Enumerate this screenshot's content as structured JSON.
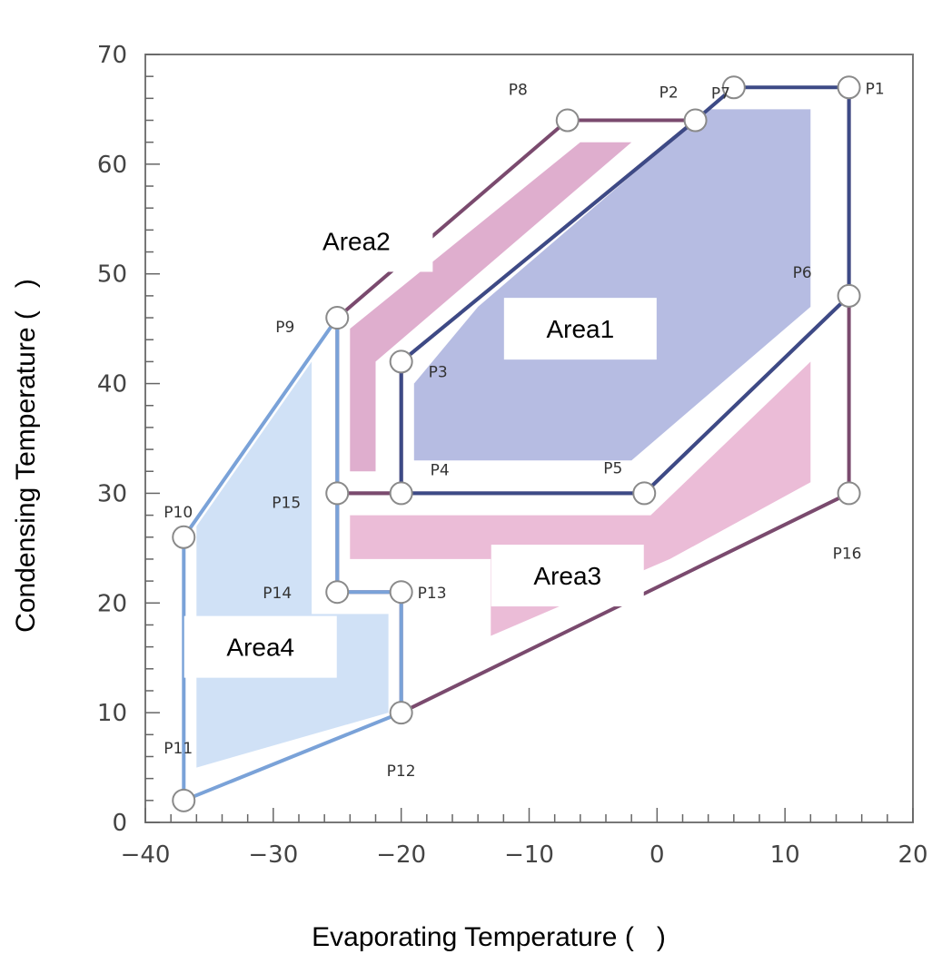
{
  "chart_data": {
    "type": "area",
    "title": "",
    "xlabel": "Evaporating Temperature (   )",
    "ylabel": "Condensing Temperature (   )",
    "xlim": [
      -40,
      20
    ],
    "ylim": [
      0,
      70
    ],
    "x_ticks": [
      -40,
      -30,
      -20,
      -10,
      0,
      10,
      20
    ],
    "y_ticks": [
      0,
      10,
      20,
      30,
      40,
      50,
      60,
      70
    ],
    "x_tick_labels": [
      "−40",
      "−30",
      "−20",
      "−10",
      "0",
      "10",
      "20"
    ],
    "y_tick_labels": [
      "0",
      "10",
      "20",
      "30",
      "40",
      "50",
      "60",
      "70"
    ],
    "grid": false,
    "points": [
      {
        "label": "P1",
        "x": 15,
        "y": 67
      },
      {
        "label": "P2",
        "x": 3,
        "y": 64
      },
      {
        "label": "P3",
        "x": -20,
        "y": 42
      },
      {
        "label": "P4",
        "x": -20,
        "y": 30
      },
      {
        "label": "P5",
        "x": -1,
        "y": 30
      },
      {
        "label": "P6",
        "x": 15,
        "y": 48
      },
      {
        "label": "P7",
        "x": 6,
        "y": 67
      },
      {
        "label": "P8",
        "x": -7,
        "y": 64
      },
      {
        "label": "P9",
        "x": -25,
        "y": 46
      },
      {
        "label": "P10",
        "x": -37,
        "y": 26
      },
      {
        "label": "P11",
        "x": -37,
        "y": 2
      },
      {
        "label": "P12",
        "x": -20,
        "y": 10
      },
      {
        "label": "P13",
        "x": -20,
        "y": 21
      },
      {
        "label": "P14",
        "x": -25,
        "y": 21
      },
      {
        "label": "P15",
        "x": -25,
        "y": 30
      },
      {
        "label": "P16",
        "x": 15,
        "y": 30
      }
    ],
    "areas": [
      {
        "name": "Area1",
        "fill": "#a9b0dd",
        "line": "#3d4a86",
        "boundary": [
          "P1",
          "P6",
          "P5",
          "P4",
          "P3",
          "P2",
          "P7"
        ],
        "fill_polygon": [
          [
            -19,
            40
          ],
          [
            -14,
            47
          ],
          [
            4,
            65
          ],
          [
            12,
            65
          ],
          [
            12,
            47
          ],
          [
            -2,
            33
          ],
          [
            -19,
            33
          ]
        ]
      },
      {
        "name": "Area2",
        "fill": "#d9a0c6",
        "line": "#7a4a6e",
        "boundary": [
          "P8",
          "P2",
          "P3",
          "P4",
          "P15",
          "P9"
        ],
        "fill_polygon": [
          [
            -24,
            45
          ],
          [
            -6,
            62
          ],
          [
            -2,
            62
          ],
          [
            -22,
            42
          ],
          [
            -22,
            32
          ],
          [
            -24,
            32
          ]
        ]
      },
      {
        "name": "Area3",
        "fill": "#e8b0d0",
        "line": "#7a4a6e",
        "boundary": [
          "P15",
          "P4",
          "P5",
          "P6",
          "P1",
          "P16",
          "P12",
          "P13",
          "P14"
        ],
        "fill_polygon": [
          [
            -24,
            28
          ],
          [
            -0.5,
            28
          ],
          [
            12,
            42
          ],
          [
            12,
            31
          ],
          [
            1,
            24
          ],
          [
            -13,
            17
          ],
          [
            -13,
            24
          ],
          [
            -24,
            24
          ]
        ]
      },
      {
        "name": "Area4",
        "fill": "#c8dcf4",
        "line": "#7aa2d8",
        "boundary": [
          "P9",
          "P15",
          "P14",
          "P13",
          "P12",
          "P11",
          "P10"
        ],
        "fill_polygon": [
          [
            -27,
            42
          ],
          [
            -36,
            27
          ],
          [
            -36,
            5
          ],
          [
            -21,
            10
          ],
          [
            -21,
            19
          ],
          [
            -27,
            19
          ]
        ]
      }
    ],
    "area_labels": [
      {
        "text": "Area1",
        "x": -6,
        "y": 45
      },
      {
        "text": "Area2",
        "x": -23.5,
        "y": 53
      },
      {
        "text": "Area3",
        "x": -7,
        "y": 22.5
      },
      {
        "text": "Area4",
        "x": -31,
        "y": 16
      }
    ]
  }
}
